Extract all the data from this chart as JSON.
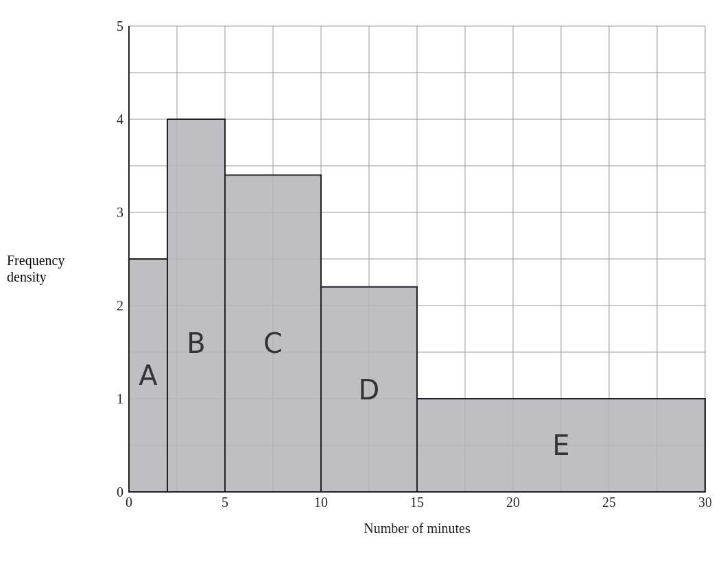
{
  "chart_data": {
    "type": "histogram",
    "xlabel": "Number of minutes",
    "ylabel": "Frequency density",
    "bins": [
      0,
      2,
      5,
      10,
      15,
      30
    ],
    "values": [
      2.5,
      4,
      3.4,
      2.2,
      1
    ],
    "color": "#b4b4b8",
    "xlim": [
      0,
      30
    ],
    "xticks": [
      0,
      {
        "value": 2.5,
        "label": null
      },
      5,
      {
        "value": 7.5,
        "label": null
      },
      10,
      {
        "value": 12.5,
        "label": null
      },
      15,
      {
        "value": 17.5,
        "label": null
      },
      20,
      {
        "value": 22.5,
        "label": null
      },
      25,
      {
        "value": 27.5,
        "label": null
      },
      30
    ],
    "ylim": [
      0,
      5
    ],
    "yticks": [
      0,
      {
        "value": 0.5,
        "label": null
      },
      1,
      {
        "value": 1.5,
        "label": null
      },
      2,
      {
        "value": 2.5,
        "label": null
      },
      3,
      {
        "value": 3.5,
        "label": null
      },
      4,
      {
        "value": 4.5,
        "label": null
      },
      5
    ],
    "grid": true,
    "annotations": [
      "A",
      "B",
      "C",
      "D",
      "E"
    ]
  }
}
